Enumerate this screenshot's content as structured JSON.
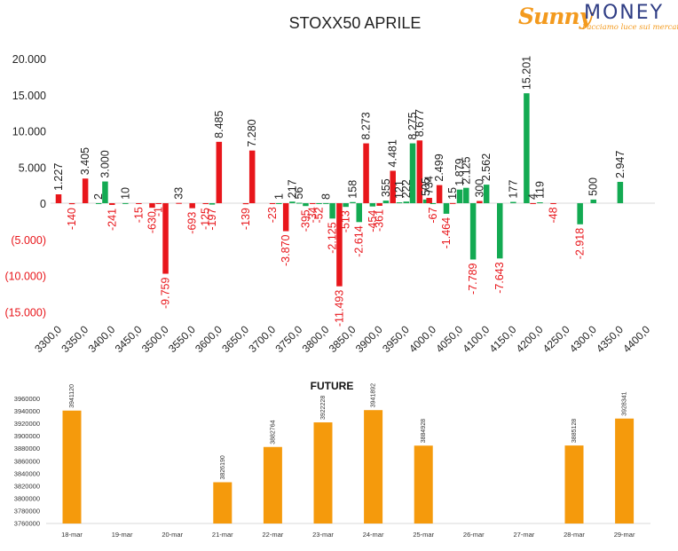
{
  "logo": {
    "brand_script": "Sunny",
    "brand_word": "MONEY",
    "tagline": "Facciamo luce sui mercati"
  },
  "colors": {
    "call": "#e8161b",
    "put": "#13aa52",
    "future": "#f59a0c",
    "positive_label": "#222222",
    "negative_label": "#e8161b"
  },
  "chart_data": [
    {
      "type": "bar",
      "title": "STOXX50 APRILE",
      "xlabel": "",
      "ylabel": "",
      "ylim": [
        -15000,
        20000
      ],
      "y_ticks": [
        "20.000",
        "15.000",
        "10.000",
        "5.000",
        "0",
        "(5.000)",
        "(10.000)",
        "(15.000)"
      ],
      "categories": [
        "3300,0",
        "3350,0",
        "3400,0",
        "3450,0",
        "3500,0",
        "3550,0",
        "3600,0",
        "3650,0",
        "3700,0",
        "3750,0",
        "3800,0",
        "3850,0",
        "3900,0",
        "3950,0",
        "4000,0",
        "4050,0",
        "4100,0",
        "4150,0",
        "4200,0",
        "4250,0",
        "4300,0",
        "4350,0",
        "4400,0"
      ],
      "grid": false,
      "legend": "none",
      "bars": [
        {
          "x": 3300,
          "value": 1227,
          "label": "1.227",
          "color_key": "call"
        },
        {
          "x": 3325,
          "value": -140,
          "label": "-140",
          "color_key": "call"
        },
        {
          "x": 3350,
          "value": 3405,
          "label": "3.405",
          "color_key": "call"
        },
        {
          "x": 3375,
          "value": 2,
          "label": "2",
          "color_key": "put"
        },
        {
          "x": 3387,
          "value": 3000,
          "label": "3.000",
          "color_key": "put"
        },
        {
          "x": 3400,
          "value": -241,
          "label": "-241",
          "color_key": "call"
        },
        {
          "x": 3425,
          "value": 10,
          "label": "10",
          "color_key": "put"
        },
        {
          "x": 3450,
          "value": -15,
          "label": "-15",
          "color_key": "call"
        },
        {
          "x": 3475,
          "value": -630,
          "label": "-630",
          "color_key": "call"
        },
        {
          "x": 3487,
          "value": -1,
          "label": "-1",
          "color_key": "call"
        },
        {
          "x": 3500,
          "value": -9759,
          "label": "-9.759",
          "color_key": "call"
        },
        {
          "x": 3525,
          "value": 33,
          "label": "33",
          "color_key": "call"
        },
        {
          "x": 3550,
          "value": -693,
          "label": "-693",
          "color_key": "call"
        },
        {
          "x": 3575,
          "value": -125,
          "label": "-125",
          "color_key": "call"
        },
        {
          "x": 3587,
          "value": -197,
          "label": "-197",
          "color_key": "put"
        },
        {
          "x": 3600,
          "value": 8485,
          "label": "8.485",
          "color_key": "call"
        },
        {
          "x": 3650,
          "value": -139,
          "label": "-139",
          "color_key": "call"
        },
        {
          "x": 3662,
          "value": 7280,
          "label": "7.280",
          "color_key": "call"
        },
        {
          "x": 3700,
          "value": -23,
          "label": "-23",
          "color_key": "call"
        },
        {
          "x": 3712,
          "value": 1,
          "label": "1",
          "color_key": "put"
        },
        {
          "x": 3725,
          "value": -3870,
          "label": "-3.870",
          "color_key": "call"
        },
        {
          "x": 3737,
          "value": 217,
          "label": "217",
          "color_key": "put"
        },
        {
          "x": 3750,
          "value": 56,
          "label": "56",
          "color_key": "put"
        },
        {
          "x": 3762,
          "value": -395,
          "label": "-395",
          "color_key": "put"
        },
        {
          "x": 3775,
          "value": -34,
          "label": "-34",
          "color_key": "call"
        },
        {
          "x": 3787,
          "value": -52,
          "label": "-52",
          "color_key": "put"
        },
        {
          "x": 3800,
          "value": 8,
          "label": "8",
          "color_key": "put"
        },
        {
          "x": 3812,
          "value": -2125,
          "label": "-2.125",
          "color_key": "put"
        },
        {
          "x": 3825,
          "value": -11493,
          "label": "-11.493",
          "color_key": "call"
        },
        {
          "x": 3837,
          "value": -513,
          "label": "-513",
          "color_key": "put"
        },
        {
          "x": 3850,
          "value": 158,
          "label": "158",
          "color_key": "put"
        },
        {
          "x": 3862,
          "value": -2614,
          "label": "-2.614",
          "color_key": "put"
        },
        {
          "x": 3875,
          "value": 8273,
          "label": "8.273",
          "color_key": "call"
        },
        {
          "x": 3887,
          "value": -454,
          "label": "-454",
          "color_key": "put"
        },
        {
          "x": 3900,
          "value": -361,
          "label": "-361",
          "color_key": "call"
        },
        {
          "x": 3912,
          "value": 355,
          "label": "355",
          "color_key": "put"
        },
        {
          "x": 3925,
          "value": 4481,
          "label": "4.481",
          "color_key": "call"
        },
        {
          "x": 3937,
          "value": 121,
          "label": "121",
          "color_key": "put"
        },
        {
          "x": 3950,
          "value": 222,
          "label": "222",
          "color_key": "put"
        },
        {
          "x": 3962,
          "value": 8275,
          "label": "8.275",
          "color_key": "put"
        },
        {
          "x": 3975,
          "value": 8677,
          "label": "8.677",
          "color_key": "call"
        },
        {
          "x": 3987,
          "value": 505,
          "label": "505",
          "color_key": "put"
        },
        {
          "x": 3993,
          "value": 734,
          "label": "734",
          "color_key": "call"
        },
        {
          "x": 4000,
          "value": -67,
          "label": "-67",
          "color_key": "put"
        },
        {
          "x": 4012,
          "value": 2499,
          "label": "2.499",
          "color_key": "call"
        },
        {
          "x": 4025,
          "value": -1464,
          "label": "-1.464",
          "color_key": "put"
        },
        {
          "x": 4037,
          "value": 15,
          "label": "15",
          "color_key": "call"
        },
        {
          "x": 4050,
          "value": 1879,
          "label": "1.879",
          "color_key": "put"
        },
        {
          "x": 4062,
          "value": 2125,
          "label": "2.125",
          "color_key": "put"
        },
        {
          "x": 4075,
          "value": -7789,
          "label": "-7.789",
          "color_key": "put"
        },
        {
          "x": 4087,
          "value": 300,
          "label": "300",
          "color_key": "call"
        },
        {
          "x": 4100,
          "value": 2562,
          "label": "2.562",
          "color_key": "put"
        },
        {
          "x": 4125,
          "value": -7643,
          "label": "-7.643",
          "color_key": "put"
        },
        {
          "x": 4150,
          "value": 177,
          "label": "177",
          "color_key": "put"
        },
        {
          "x": 4175,
          "value": 15201,
          "label": "15.201",
          "color_key": "put"
        },
        {
          "x": 4187,
          "value": 4,
          "label": "4",
          "color_key": "call"
        },
        {
          "x": 4200,
          "value": 119,
          "label": "119",
          "color_key": "put"
        },
        {
          "x": 4225,
          "value": -48,
          "label": "-48",
          "color_key": "call"
        },
        {
          "x": 4275,
          "value": -2918,
          "label": "-2.918",
          "color_key": "put"
        },
        {
          "x": 4300,
          "value": 500,
          "label": "500",
          "color_key": "put"
        },
        {
          "x": 4350,
          "value": 2947,
          "label": "2.947",
          "color_key": "put"
        }
      ]
    },
    {
      "type": "bar",
      "title": "FUTURE",
      "xlabel": "",
      "ylabel": "",
      "ylim": [
        3760000,
        3960000
      ],
      "y_ticks": [
        "3960000",
        "3940000",
        "3920000",
        "3900000",
        "3880000",
        "3860000",
        "3840000",
        "3820000",
        "3800000",
        "3780000",
        "3760000"
      ],
      "categories": [
        "18-mar",
        "19-mar",
        "20-mar",
        "21-mar",
        "22-mar",
        "23-mar",
        "24-mar",
        "25-mar",
        "26-mar",
        "27-mar",
        "28-mar",
        "29-mar"
      ],
      "values": [
        3941120,
        null,
        null,
        3826190,
        3882764,
        3922228,
        3941892,
        3884928,
        null,
        null,
        3885128,
        3928341
      ],
      "data_labels": [
        "3941120",
        "",
        "",
        "3826190",
        "3882764",
        "3922228",
        "3941892",
        "3884928",
        "",
        "",
        "3885128",
        "3928341"
      ],
      "grid": false,
      "legend": "none"
    }
  ]
}
